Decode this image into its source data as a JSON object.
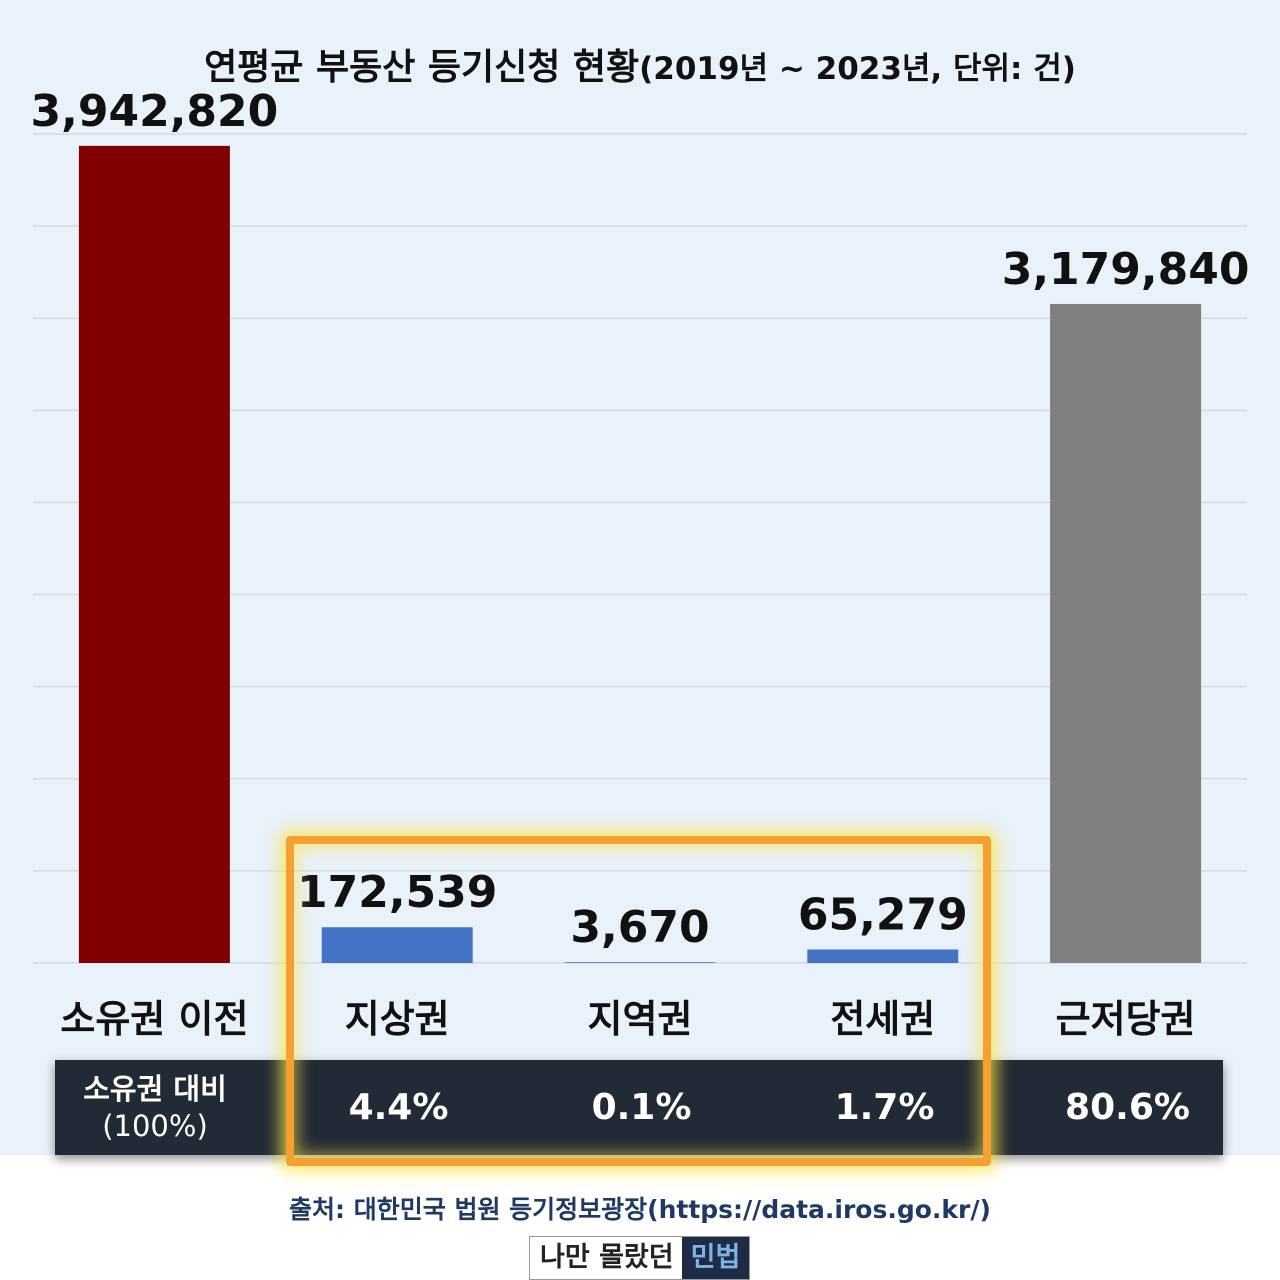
{
  "title": {
    "main": "연평균 부동산 등기신청 현황",
    "sub": "(2019년 ~ 2023년, 단위: 건)"
  },
  "chart_data": {
    "type": "bar",
    "categories": [
      "소유권 이전",
      "지상권",
      "지역권",
      "전세권",
      "근저당권"
    ],
    "values": [
      3942820,
      172539,
      3670,
      65279,
      3179840
    ],
    "value_labels": [
      "3,942,820",
      "172,539",
      "3,670",
      "65,279",
      "3,179,840"
    ],
    "colors": [
      "#800000",
      "#4472c4",
      "#4472c4",
      "#4472c4",
      "#808080"
    ],
    "ylim": [
      0,
      4000000
    ],
    "grid": true,
    "legend": "none"
  },
  "ratio_row": {
    "label": "소유권 대비",
    "base_pct": "(100%)",
    "values": [
      "4.4%",
      "0.1%",
      "1.7%",
      "80.6%"
    ]
  },
  "source": "출처: 대한민국 법원 등기정보광장(https://data.iros.go.kr/)",
  "logo": {
    "part1": "나만 몰랐던",
    "part2": "민법"
  },
  "highlight_color": "#f5a030"
}
